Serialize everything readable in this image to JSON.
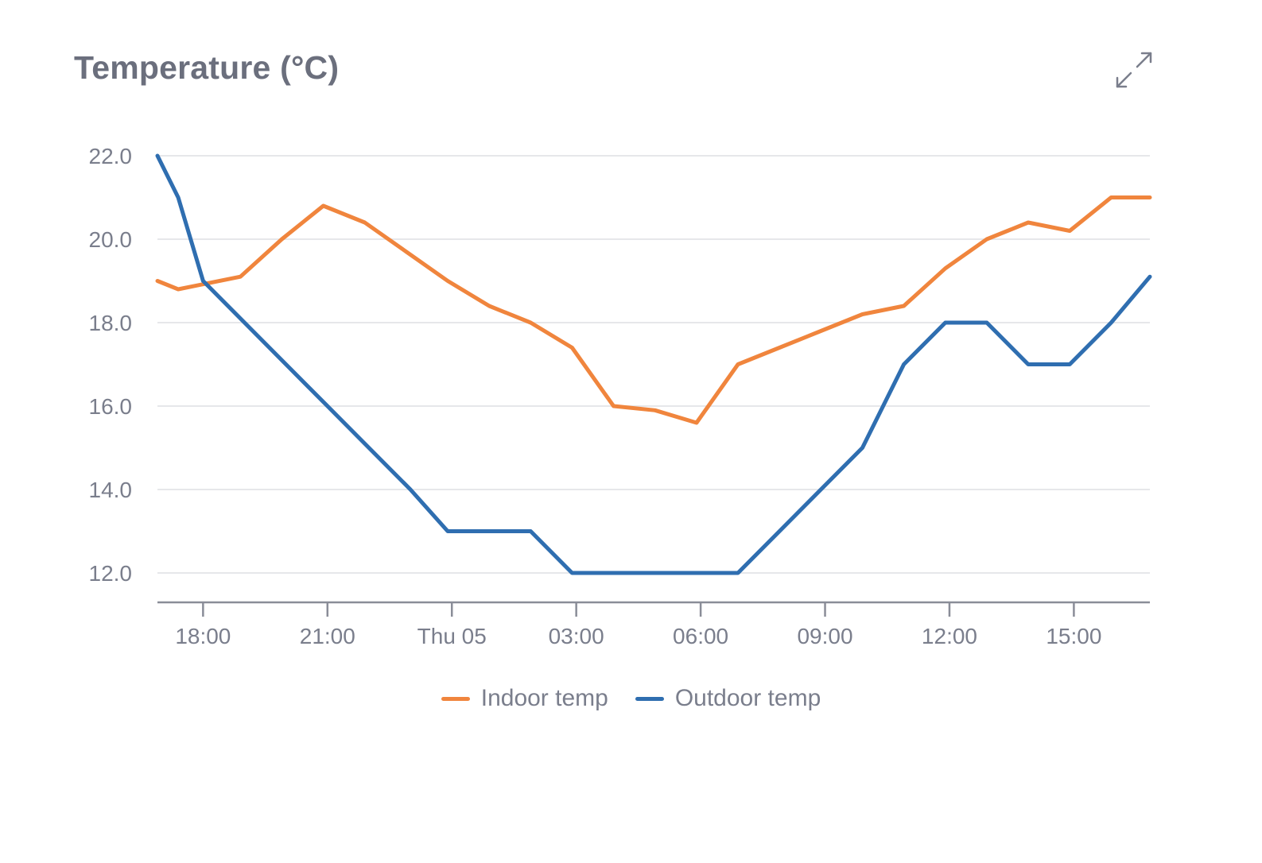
{
  "card": {
    "title": "Temperature (°C)"
  },
  "icons": {
    "expand": "expand-icon"
  },
  "chart_data": {
    "type": "line",
    "title": "Temperature (°C)",
    "xlabel": "",
    "ylabel": "",
    "ylim": [
      11.3,
      22.0
    ],
    "y_ticks": [
      "22.0",
      "20.0",
      "18.0",
      "16.0",
      "14.0",
      "12.0"
    ],
    "y_tick_values": [
      22,
      20,
      18,
      16,
      14,
      12
    ],
    "x_domain": [
      "2024-09-04 16:54",
      "2024-09-05 16:50"
    ],
    "x_ticks": [
      {
        "label": "18:00",
        "time": "2024-09-04 18:00"
      },
      {
        "label": "21:00",
        "time": "2024-09-04 21:00"
      },
      {
        "label": "Thu 05",
        "time": "2024-09-05 00:00"
      },
      {
        "label": "03:00",
        "time": "2024-09-05 03:00"
      },
      {
        "label": "06:00",
        "time": "2024-09-05 06:00"
      },
      {
        "label": "09:00",
        "time": "2024-09-05 09:00"
      },
      {
        "label": "12:00",
        "time": "2024-09-05 12:00"
      },
      {
        "label": "15:00",
        "time": "2024-09-05 15:00"
      }
    ],
    "grid": true,
    "legend_position": "bottom-center",
    "series": [
      {
        "name": "Indoor temp",
        "color": "#f0853d",
        "points": [
          [
            "2024-09-04 16:54",
            19.0
          ],
          [
            "2024-09-04 17:24",
            18.8
          ],
          [
            "2024-09-04 18:54",
            19.1
          ],
          [
            "2024-09-04 19:54",
            20.0
          ],
          [
            "2024-09-04 20:54",
            20.8
          ],
          [
            "2024-09-04 21:54",
            20.4
          ],
          [
            "2024-09-04 22:54",
            19.7
          ],
          [
            "2024-09-04 23:54",
            19.0
          ],
          [
            "2024-09-05 00:54",
            18.4
          ],
          [
            "2024-09-05 01:54",
            18.0
          ],
          [
            "2024-09-05 02:54",
            17.4
          ],
          [
            "2024-09-05 03:54",
            16.0
          ],
          [
            "2024-09-05 04:54",
            15.9
          ],
          [
            "2024-09-05 05:54",
            15.6
          ],
          [
            "2024-09-05 06:54",
            17.0
          ],
          [
            "2024-09-05 07:54",
            17.4
          ],
          [
            "2024-09-05 08:54",
            17.8
          ],
          [
            "2024-09-05 09:54",
            18.2
          ],
          [
            "2024-09-05 10:54",
            18.4
          ],
          [
            "2024-09-05 11:54",
            19.3
          ],
          [
            "2024-09-05 12:54",
            20.0
          ],
          [
            "2024-09-05 13:54",
            20.4
          ],
          [
            "2024-09-05 14:54",
            20.2
          ],
          [
            "2024-09-05 15:54",
            21.0
          ],
          [
            "2024-09-05 16:50",
            21.0
          ]
        ]
      },
      {
        "name": "Outdoor temp",
        "color": "#2f6eb0",
        "points": [
          [
            "2024-09-04 16:54",
            22.0
          ],
          [
            "2024-09-04 17:24",
            21.0
          ],
          [
            "2024-09-04 18:00",
            19.0
          ],
          [
            "2024-09-04 19:00",
            18.0
          ],
          [
            "2024-09-04 20:00",
            17.0
          ],
          [
            "2024-09-04 21:00",
            16.0
          ],
          [
            "2024-09-04 22:00",
            15.0
          ],
          [
            "2024-09-04 23:00",
            14.0
          ],
          [
            "2024-09-04 23:54",
            13.0
          ],
          [
            "2024-09-05 00:54",
            13.0
          ],
          [
            "2024-09-05 01:54",
            13.0
          ],
          [
            "2024-09-05 02:54",
            12.0
          ],
          [
            "2024-09-05 03:54",
            12.0
          ],
          [
            "2024-09-05 04:54",
            12.0
          ],
          [
            "2024-09-05 05:54",
            12.0
          ],
          [
            "2024-09-05 06:54",
            12.0
          ],
          [
            "2024-09-05 07:54",
            13.0
          ],
          [
            "2024-09-05 08:54",
            14.0
          ],
          [
            "2024-09-05 09:54",
            15.0
          ],
          [
            "2024-09-05 10:54",
            17.0
          ],
          [
            "2024-09-05 11:54",
            18.0
          ],
          [
            "2024-09-05 12:54",
            18.0
          ],
          [
            "2024-09-05 13:54",
            17.0
          ],
          [
            "2024-09-05 14:54",
            17.0
          ],
          [
            "2024-09-05 15:54",
            18.0
          ],
          [
            "2024-09-05 16:50",
            19.1
          ]
        ]
      }
    ]
  }
}
